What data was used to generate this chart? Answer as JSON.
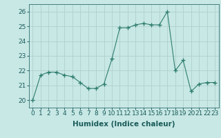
{
  "x": [
    0,
    1,
    2,
    3,
    4,
    5,
    6,
    7,
    8,
    9,
    10,
    11,
    12,
    13,
    14,
    15,
    16,
    17,
    18,
    19,
    20,
    21,
    22,
    23
  ],
  "y": [
    20.0,
    21.7,
    21.9,
    21.9,
    21.7,
    21.6,
    21.2,
    20.8,
    20.8,
    21.1,
    22.8,
    24.9,
    24.9,
    25.1,
    25.2,
    25.1,
    25.1,
    26.0,
    22.0,
    22.7,
    20.6,
    21.1,
    21.2,
    21.2
  ],
  "line_color": "#2e7d6e",
  "marker": "+",
  "marker_size": 4,
  "bg_color": "#c8e8e5",
  "grid_color": "#b0d0ce",
  "xlabel": "Humidex (Indice chaleur)",
  "ylim": [
    19.5,
    26.5
  ],
  "xlim": [
    -0.5,
    23.5
  ],
  "yticks": [
    20,
    21,
    22,
    23,
    24,
    25,
    26
  ],
  "xticks": [
    0,
    1,
    2,
    3,
    4,
    5,
    6,
    7,
    8,
    9,
    10,
    11,
    12,
    13,
    14,
    15,
    16,
    17,
    18,
    19,
    20,
    21,
    22,
    23
  ],
  "tick_color": "#2e6e6e",
  "label_color": "#1a5c5a",
  "font_size": 6.5,
  "xlabel_size": 7.5
}
